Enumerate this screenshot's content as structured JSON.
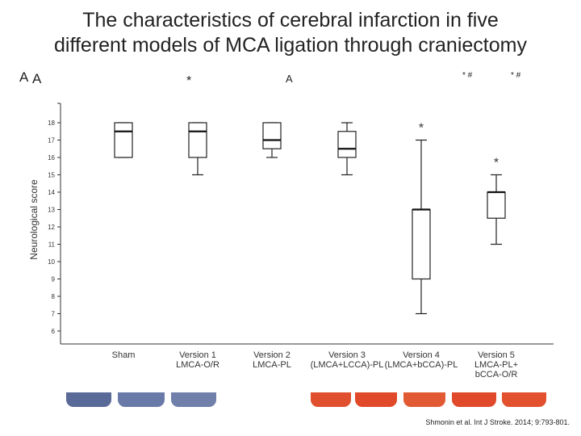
{
  "slide": {
    "title_line1": "The characteristics of cerebral infarction in five",
    "title_line2": "different models of MCA ligation through craniectomy",
    "citation": "Shmonin et al. Int J Stroke. 2014; 9:793-801."
  },
  "panel_labels": {
    "left_a": "A",
    "mid_a": "A",
    "star_top": "*",
    "star_hash_1": "* #",
    "star_hash_2": "* #"
  },
  "colors": {
    "brain_blue": "#4a5a8a",
    "brain_red": "#e04a2a"
  },
  "chart_data": {
    "type": "box",
    "ylabel": "Neurological score",
    "ylim": [
      5,
      19
    ],
    "yticks": [
      6,
      7,
      8,
      9,
      10,
      11,
      12,
      13,
      14,
      15,
      16,
      17,
      18
    ],
    "grid": false,
    "groups": [
      {
        "label_lines": [
          "Sham"
        ],
        "whisker_low": 16,
        "q1": 16,
        "median": 17.5,
        "q3": 18,
        "whisker_high": 18,
        "star": ""
      },
      {
        "label_lines": [
          "Version 1",
          "LMCA-O/R"
        ],
        "whisker_low": 15,
        "q1": 16,
        "median": 17.5,
        "q3": 18,
        "whisker_high": 18,
        "star": ""
      },
      {
        "label_lines": [
          "Version 2",
          "LMCA-PL"
        ],
        "whisker_low": 16,
        "q1": 16.5,
        "median": 17,
        "q3": 18,
        "whisker_high": 18,
        "star": ""
      },
      {
        "label_lines": [
          "Version 3",
          "(LMCA+LCCA)-PL"
        ],
        "whisker_low": 15,
        "q1": 16,
        "median": 16.5,
        "q3": 17.5,
        "whisker_high": 18,
        "star": ""
      },
      {
        "label_lines": [
          "Version 4",
          "(LMCA+bCCA)-PL"
        ],
        "whisker_low": 7,
        "q1": 9,
        "median": 13,
        "q3": 13,
        "whisker_high": 17,
        "star": "*"
      },
      {
        "label_lines": [
          "Version 5",
          "LMCA-PL+",
          "bCCA-O/R"
        ],
        "whisker_low": 11,
        "q1": 12.5,
        "median": 14,
        "q3": 14,
        "whisker_high": 15,
        "star": "*"
      }
    ]
  }
}
